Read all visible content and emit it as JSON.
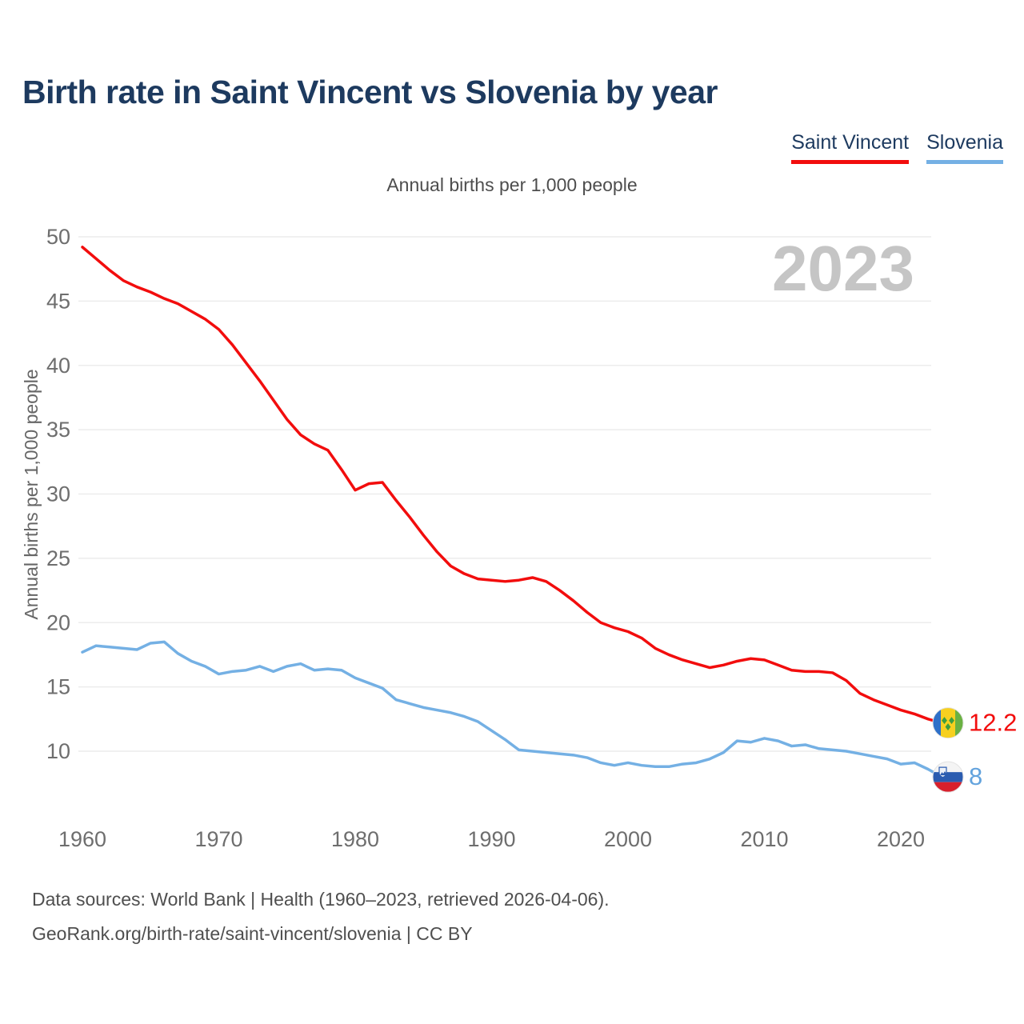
{
  "header": {
    "title": "Birth rate in Saint Vincent vs Slovenia by year"
  },
  "legend": [
    {
      "label": "Saint Vincent",
      "color": "#f20d0d"
    },
    {
      "label": "Slovenia",
      "color": "#74b0e4"
    }
  ],
  "subtitle": "Annual births per 1,000 people",
  "watermark": "2023",
  "end_labels": [
    {
      "series": "Saint Vincent",
      "value": "12.2",
      "color": "#f20d0d",
      "flag": "saint-vincent-flag-icon"
    },
    {
      "series": "Slovenia",
      "value": "8",
      "color": "#63a3dd",
      "flag": "slovenia-flag-icon"
    }
  ],
  "footer": {
    "line1": "Data sources: World Bank | Health (1960–2023, retrieved 2026-04-06).",
    "line2": "GeoRank.org/birth-rate/saint-vincent/slovenia | CC BY"
  },
  "chart_data": {
    "type": "line",
    "title": "Birth rate in Saint Vincent vs Slovenia by year",
    "subtitle": "Annual births per 1,000 people",
    "xlabel": "",
    "ylabel": "Annual births per 1,000 people",
    "grid": "horizontal",
    "legend_position": "top-right",
    "ylim": [
      7.5,
      50
    ],
    "yticks": [
      10,
      15,
      20,
      25,
      30,
      35,
      40,
      45,
      50
    ],
    "xticks": [
      1960,
      1970,
      1980,
      1990,
      2000,
      2010,
      2020
    ],
    "x": [
      1960,
      1961,
      1962,
      1963,
      1964,
      1965,
      1966,
      1967,
      1968,
      1969,
      1970,
      1971,
      1972,
      1973,
      1974,
      1975,
      1976,
      1977,
      1978,
      1979,
      1980,
      1981,
      1982,
      1983,
      1984,
      1985,
      1986,
      1987,
      1988,
      1989,
      1990,
      1991,
      1992,
      1993,
      1994,
      1995,
      1996,
      1997,
      1998,
      1999,
      2000,
      2001,
      2002,
      2003,
      2004,
      2005,
      2006,
      2007,
      2008,
      2009,
      2010,
      2011,
      2012,
      2013,
      2014,
      2015,
      2016,
      2017,
      2018,
      2019,
      2020,
      2021,
      2022,
      2023
    ],
    "series": [
      {
        "name": "Saint Vincent",
        "color": "#f20d0d",
        "values": [
          49.2,
          48.3,
          47.4,
          46.6,
          46.1,
          45.7,
          45.2,
          44.8,
          44.2,
          43.6,
          42.8,
          41.6,
          40.2,
          38.8,
          37.3,
          35.8,
          34.6,
          33.9,
          33.4,
          31.9,
          30.3,
          30.8,
          30.9,
          29.5,
          28.2,
          26.8,
          25.5,
          24.4,
          23.8,
          23.4,
          23.3,
          23.2,
          23.3,
          23.5,
          23.2,
          22.5,
          21.7,
          20.8,
          20.0,
          19.6,
          19.3,
          18.8,
          18.0,
          17.5,
          17.1,
          16.8,
          16.5,
          16.7,
          17.0,
          17.2,
          17.1,
          16.7,
          16.3,
          16.2,
          16.2,
          16.1,
          15.5,
          14.5,
          14.0,
          13.6,
          13.2,
          12.9,
          12.5,
          12.2
        ]
      },
      {
        "name": "Slovenia",
        "color": "#74b0e4",
        "values": [
          17.7,
          18.2,
          18.1,
          18.0,
          17.9,
          18.4,
          18.5,
          17.6,
          17.0,
          16.6,
          16.0,
          16.2,
          16.3,
          16.6,
          16.2,
          16.6,
          16.8,
          16.3,
          16.4,
          16.3,
          15.7,
          15.3,
          14.9,
          14.0,
          13.7,
          13.4,
          13.2,
          13.0,
          12.7,
          12.3,
          11.6,
          10.9,
          10.1,
          10.0,
          9.9,
          9.8,
          9.7,
          9.5,
          9.1,
          8.9,
          9.1,
          8.9,
          8.8,
          8.8,
          9.0,
          9.1,
          9.4,
          9.9,
          10.8,
          10.7,
          11.0,
          10.8,
          10.4,
          10.5,
          10.2,
          10.1,
          10.0,
          9.8,
          9.6,
          9.4,
          9.0,
          9.1,
          8.6,
          8.0
        ]
      }
    ]
  }
}
